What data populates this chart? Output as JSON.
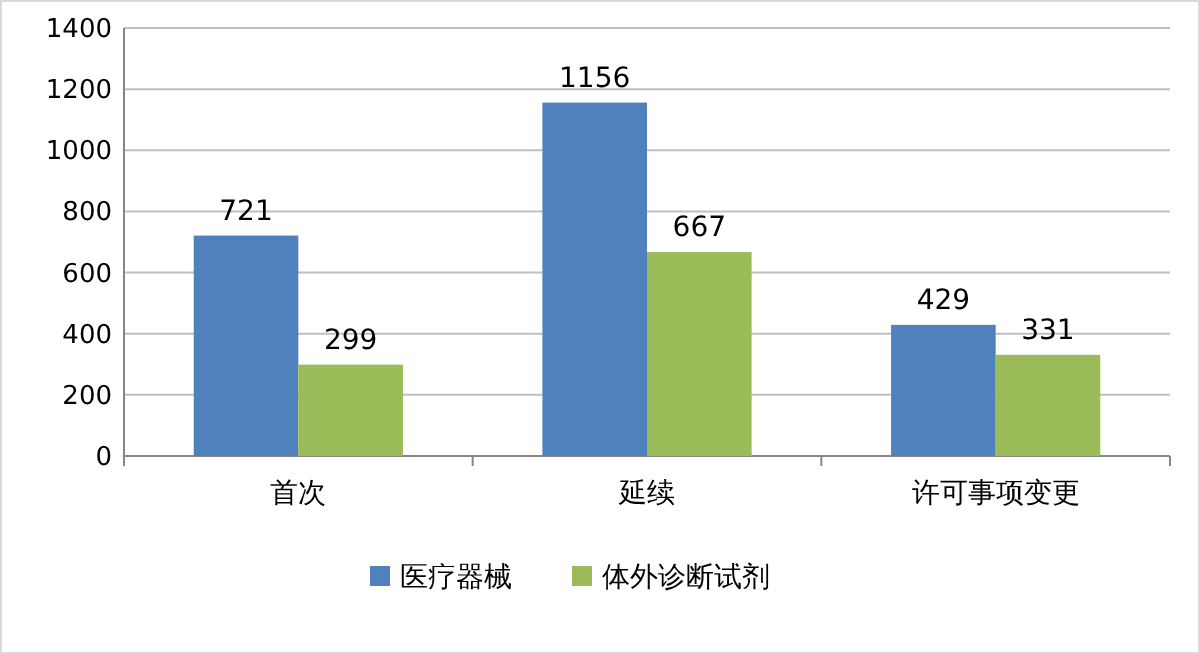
{
  "chart_data": {
    "type": "bar",
    "categories": [
      "首次",
      "延续",
      "许可事项变更"
    ],
    "series": [
      {
        "name": "医疗器械",
        "color": "#4f81bd",
        "values": [
          721,
          1156,
          429
        ]
      },
      {
        "name": "体外诊断试剂",
        "color": "#9bbb59",
        "values": [
          299,
          667,
          331
        ]
      }
    ],
    "ylim": [
      0,
      1400
    ],
    "yticks": [
      0,
      200,
      400,
      600,
      800,
      1000,
      1200,
      1400
    ],
    "grid": "y",
    "legend": "bottom",
    "data_labels": true
  }
}
